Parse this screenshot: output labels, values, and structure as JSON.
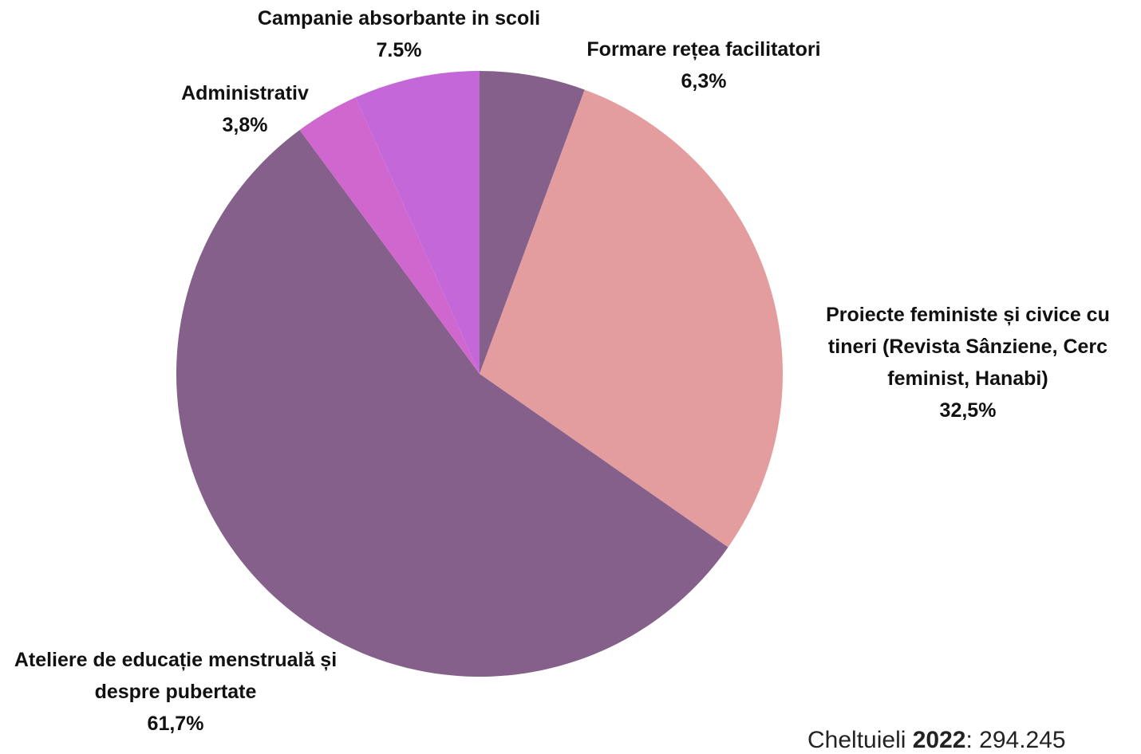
{
  "chart_data": {
    "type": "pie",
    "categories": [
      "Formare rețea facilitatori",
      "Proiecte feministe și civice cu tineri (Revista Sânziene, Cerc feminist, Hanabi)",
      "Ateliere de educație menstruală și despre pubertate",
      "Administrativ",
      "Campanie absorbante in scoli"
    ],
    "values": [
      6.3,
      32.5,
      61.7,
      3.8,
      7.5
    ],
    "value_labels": [
      "6,3%",
      "32,5%",
      "61,7%",
      "3,8%",
      "7.5%"
    ],
    "colors": [
      "#85608b",
      "#e49d9f",
      "#85608b",
      "#cf67cf",
      "#c468d9"
    ]
  },
  "footer": {
    "before": "Cheltuieli ",
    "year": "2022",
    "after": ": 294.245"
  }
}
